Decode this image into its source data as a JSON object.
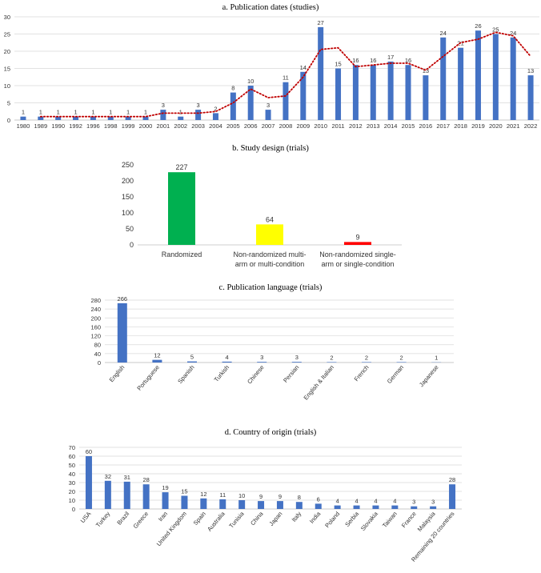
{
  "chart_data": [
    {
      "type": "bar",
      "title": "a. Publication dates (studies)",
      "categories": [
        "1980",
        "1989",
        "1990",
        "1992",
        "1996",
        "1998",
        "1999",
        "2000",
        "2001",
        "2002",
        "2003",
        "2004",
        "2005",
        "2006",
        "2007",
        "2008",
        "2009",
        "2010",
        "2011",
        "2012",
        "2013",
        "2014",
        "2015",
        "2016",
        "2017",
        "2018",
        "2019",
        "2020",
        "2021",
        "2022"
      ],
      "values": [
        1,
        1,
        1,
        1,
        1,
        1,
        1,
        1,
        3,
        1,
        3,
        2,
        8,
        10,
        3,
        11,
        14,
        27,
        15,
        16,
        16,
        17,
        16,
        13,
        24,
        21,
        26,
        25,
        24,
        13
      ],
      "ylim": [
        0,
        30
      ],
      "yticks": [
        0,
        5,
        10,
        15,
        20,
        25,
        30
      ],
      "bar_color": "#4472c4",
      "trendline": {
        "type": "moving average (dotted)",
        "color": "#c00000"
      },
      "grid": true
    },
    {
      "type": "bar",
      "title": "b. Study design (trials)",
      "categories": [
        "Randomized",
        "Non-randomized multi-arm or multi-condition",
        "Non-randomized single-arm or single-condition"
      ],
      "category_lines": [
        [
          "Randomized"
        ],
        [
          "Non-randomized multi-",
          "arm or multi-condition"
        ],
        [
          "Non-randomized single-",
          "arm or single-condition"
        ]
      ],
      "values": [
        227,
        64,
        9
      ],
      "colors": [
        "#00b050",
        "#ffff00",
        "#ff0000"
      ],
      "ylim": [
        0,
        250
      ],
      "yticks": [
        0,
        50,
        100,
        150,
        200,
        250
      ],
      "grid": false
    },
    {
      "type": "bar",
      "title": "c. Publication language (trials)",
      "categories": [
        "English",
        "Portuguese",
        "Spanish",
        "Turkish",
        "Chinese",
        "Persian",
        "English & Italian",
        "French",
        "German",
        "Japanese"
      ],
      "values": [
        266,
        12,
        5,
        4,
        3,
        3,
        2,
        2,
        2,
        1
      ],
      "ylim": [
        0,
        280
      ],
      "yticks": [
        0,
        40,
        80,
        120,
        160,
        200,
        240,
        280
      ],
      "bar_color": "#4472c4",
      "grid": true
    },
    {
      "type": "bar",
      "title": "d. Country of origin (trials)",
      "categories": [
        "USA",
        "Turkey",
        "Brazil",
        "Greece",
        "Iran",
        "United Kingdom",
        "Spain",
        "Australia",
        "Tunisia",
        "China",
        "Japan",
        "Italy",
        "India",
        "Poland",
        "Serbia",
        "Slovakia",
        "Taiwan",
        "France",
        "Malaysia",
        "Remaining 20 countries"
      ],
      "values": [
        60,
        32,
        31,
        28,
        19,
        15,
        12,
        11,
        10,
        9,
        9,
        8,
        6,
        4,
        4,
        4,
        4,
        3,
        3,
        28
      ],
      "ylim": [
        0,
        70
      ],
      "yticks": [
        0,
        10,
        20,
        30,
        40,
        50,
        60,
        70
      ],
      "bar_color": "#4472c4",
      "grid": true
    }
  ]
}
